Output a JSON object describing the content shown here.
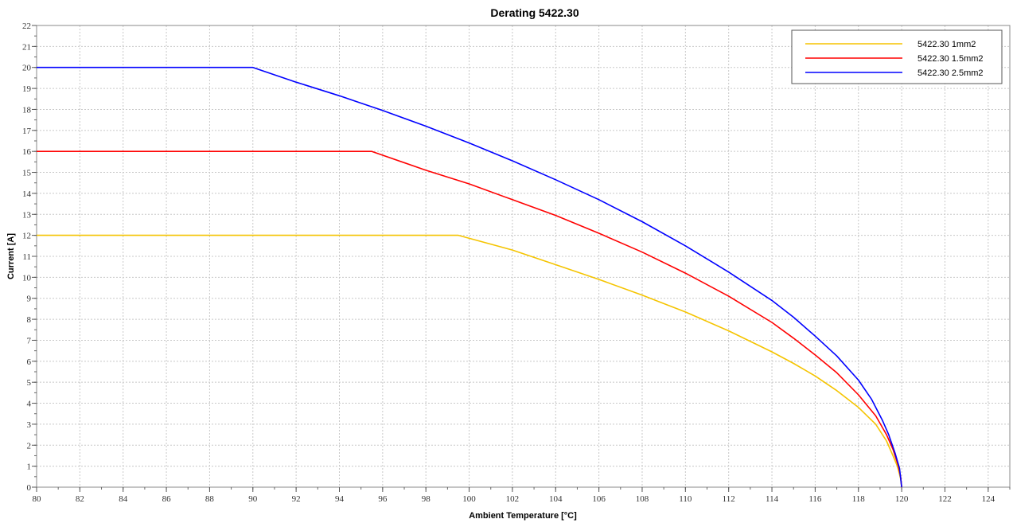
{
  "chart_data": {
    "type": "line",
    "title": "Derating 5422.30",
    "xlabel": "Ambient Temperature [°C]",
    "ylabel": "Current [A]",
    "xlim": [
      80,
      125
    ],
    "ylim": [
      0,
      22
    ],
    "xticks": [
      80,
      82,
      84,
      86,
      88,
      90,
      92,
      94,
      96,
      98,
      100,
      102,
      104,
      106,
      108,
      110,
      112,
      114,
      116,
      118,
      120,
      122,
      124
    ],
    "yticks": [
      0,
      1,
      2,
      3,
      4,
      5,
      6,
      7,
      8,
      9,
      10,
      11,
      12,
      13,
      14,
      15,
      16,
      17,
      18,
      19,
      20,
      21,
      22
    ],
    "grid": true,
    "legend_position": "top-right",
    "series": [
      {
        "name": "5422.30 1mm2",
        "color": "#f5c400",
        "points": [
          [
            80,
            12
          ],
          [
            99.5,
            12
          ],
          [
            102,
            11.3
          ],
          [
            104,
            10.6
          ],
          [
            106,
            9.9
          ],
          [
            108,
            9.15
          ],
          [
            110,
            8.35
          ],
          [
            112,
            7.45
          ],
          [
            114,
            6.45
          ],
          [
            115,
            5.9
          ],
          [
            116,
            5.3
          ],
          [
            117,
            4.6
          ],
          [
            118,
            3.8
          ],
          [
            118.8,
            3.0
          ],
          [
            119.3,
            2.2
          ],
          [
            119.6,
            1.5
          ],
          [
            119.8,
            1.0
          ],
          [
            119.95,
            0.4
          ],
          [
            120,
            0
          ]
        ]
      },
      {
        "name": "5422.30 1.5mm2",
        "color": "#ff0000",
        "points": [
          [
            80,
            16
          ],
          [
            95.5,
            16
          ],
          [
            98,
            15.1
          ],
          [
            100,
            14.45
          ],
          [
            102,
            13.7
          ],
          [
            104,
            12.95
          ],
          [
            106,
            12.1
          ],
          [
            108,
            11.2
          ],
          [
            110,
            10.2
          ],
          [
            112,
            9.1
          ],
          [
            114,
            7.85
          ],
          [
            115,
            7.1
          ],
          [
            116,
            6.3
          ],
          [
            117,
            5.45
          ],
          [
            118,
            4.4
          ],
          [
            118.8,
            3.4
          ],
          [
            119.3,
            2.5
          ],
          [
            119.6,
            1.8
          ],
          [
            119.85,
            1.0
          ],
          [
            119.95,
            0.5
          ],
          [
            120,
            0
          ]
        ]
      },
      {
        "name": "5422.30 2.5mm2",
        "color": "#0000ff",
        "points": [
          [
            80,
            20
          ],
          [
            90,
            20
          ],
          [
            92,
            19.3
          ],
          [
            94,
            18.65
          ],
          [
            96,
            17.95
          ],
          [
            98,
            17.2
          ],
          [
            100,
            16.4
          ],
          [
            102,
            15.55
          ],
          [
            104,
            14.65
          ],
          [
            106,
            13.7
          ],
          [
            108,
            12.65
          ],
          [
            110,
            11.5
          ],
          [
            112,
            10.25
          ],
          [
            114,
            8.9
          ],
          [
            115,
            8.1
          ],
          [
            116,
            7.2
          ],
          [
            117,
            6.25
          ],
          [
            118,
            5.1
          ],
          [
            118.6,
            4.2
          ],
          [
            119.1,
            3.2
          ],
          [
            119.4,
            2.5
          ],
          [
            119.7,
            1.6
          ],
          [
            119.9,
            0.9
          ],
          [
            120,
            0
          ]
        ]
      }
    ]
  }
}
